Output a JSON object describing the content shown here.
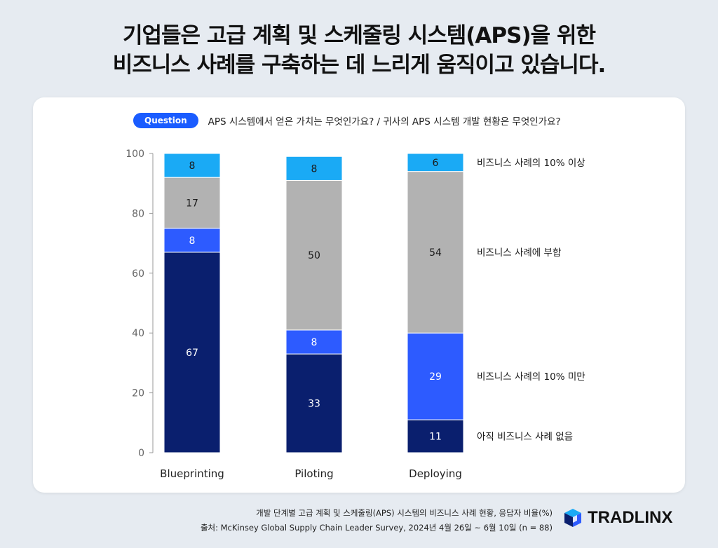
{
  "title": {
    "line1": "기업들은 고급 계획 및 스케줄링 시스템(APS)을 위한",
    "line2": "비즈니스 사례를 구축하는 데 느리게 움직이고 있습니다."
  },
  "question": {
    "badge": "Question",
    "text": "APS 시스템에서 얻은 가치는 무엇인가요? / 귀사의 APS 시스템 개발 현황은 무엇인가요?"
  },
  "chart_data": {
    "type": "bar",
    "stacked": true,
    "categories": [
      "Blueprinting",
      "Piloting",
      "Deploying"
    ],
    "series": [
      {
        "name": "아직 비즈니스 사례 없음",
        "values": [
          67,
          33,
          11
        ],
        "color": "#0a1f6e"
      },
      {
        "name": "비즈니스 사례의 10% 미만",
        "values": [
          8,
          8,
          29
        ],
        "color": "#2d5bff"
      },
      {
        "name": "비즈니스 사례에 부합",
        "values": [
          17,
          50,
          54
        ],
        "color": "#b2b2b2"
      },
      {
        "name": "비즈니스 사례의 10% 이상",
        "values": [
          8,
          8,
          6
        ],
        "color": "#1aaaf5"
      }
    ],
    "ylim": [
      0,
      100
    ],
    "yticks": [
      0,
      20,
      40,
      60,
      80,
      100
    ],
    "grid": false,
    "legend": "right"
  },
  "footer": {
    "note": "개발 단계별 고급 계획 및 스케줄링(APS) 시스템의 비즈니스 사례 현황, 응답자 비율(%)",
    "source": "출처: McKinsey Global Supply Chain Leader Survey, 2024년 4월 26일 ~ 6월 10일 (n = 88)"
  },
  "logo": {
    "text": "TRADLINX",
    "icon": "cube-logo-icon"
  }
}
